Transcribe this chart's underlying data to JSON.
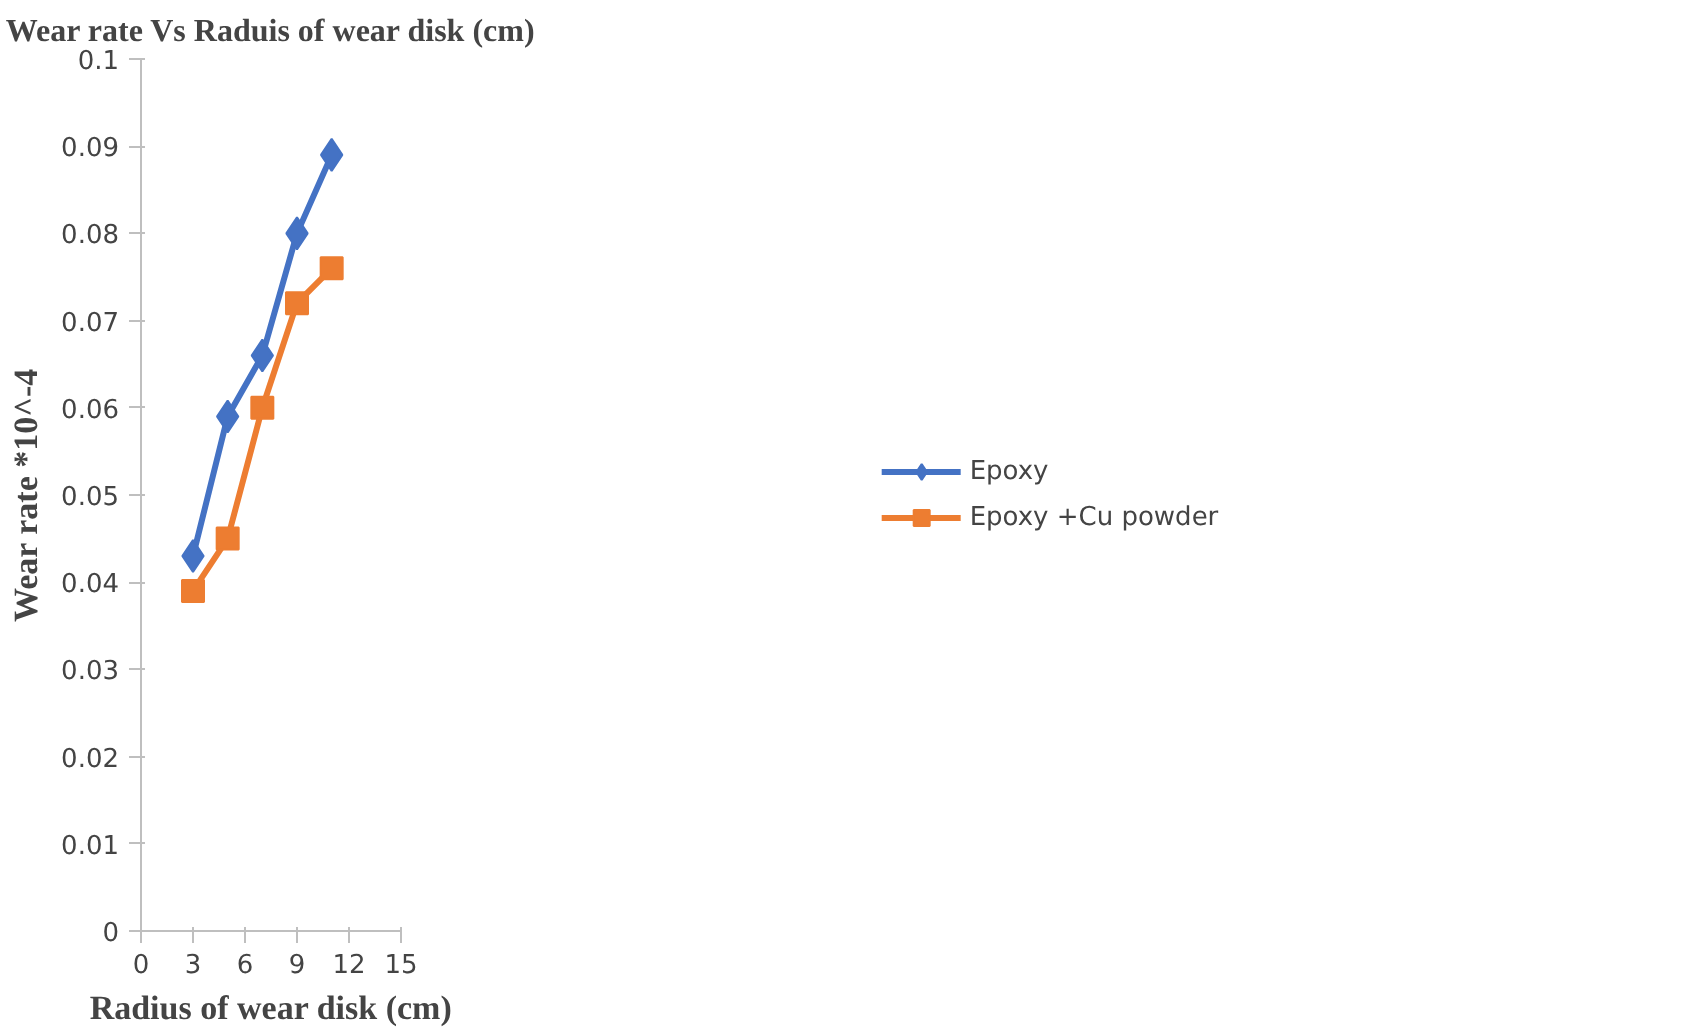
{
  "chart_data": {
    "type": "line",
    "title": "Wear rate Vs Raduis of wear disk (cm)",
    "xlabel": "Radius of wear disk (cm)",
    "ylabel": "Wear rate *10^-4",
    "x": [
      3,
      5,
      7,
      9,
      11
    ],
    "series": [
      {
        "name": "Epoxy",
        "color": "#4472c4",
        "marker": "diamond",
        "values": [
          0.043,
          0.059,
          0.066,
          0.08,
          0.089
        ]
      },
      {
        "name": "Epoxy +Cu powder",
        "color": "#ed7d31",
        "marker": "square",
        "values": [
          0.039,
          0.045,
          0.06,
          0.072,
          0.076
        ]
      }
    ],
    "xlim": [
      0,
      15
    ],
    "xticks": [
      0,
      3,
      6,
      9,
      12,
      15
    ],
    "ylim": [
      0,
      0.1
    ],
    "yticks": [
      0,
      0.01,
      0.02,
      0.03,
      0.04,
      0.05,
      0.06,
      0.07,
      0.08,
      0.09,
      0.1
    ],
    "legend": "right",
    "grid": false,
    "line_style": "solid"
  }
}
